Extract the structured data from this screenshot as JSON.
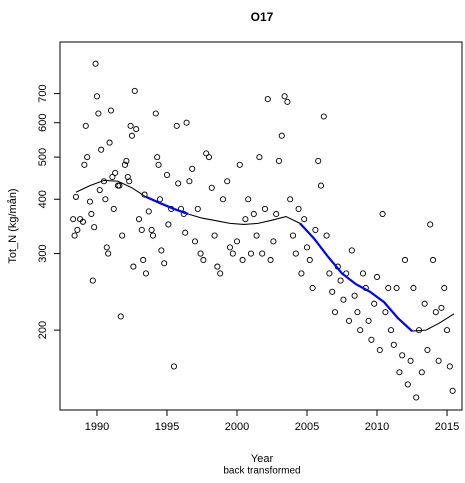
{
  "chart_data": {
    "type": "scatter",
    "title": "O17",
    "x_label": "Year",
    "x_sublabel": "back transformed",
    "y_label": "Tot_N (kg/mån)",
    "log_y": true,
    "color": "#000000",
    "xlim": [
      1987.36,
      2016.07
    ],
    "ylim": [
      131,
      920
    ],
    "xticks": [
      1990,
      1995,
      2000,
      2005,
      2010,
      2015
    ],
    "yticks": [
      200,
      300,
      400,
      500,
      600,
      700
    ],
    "x": [
      1988.3,
      1988.4,
      1988.5,
      1988.6,
      1988.8,
      1989.0,
      1989.1,
      1989.2,
      1989.3,
      1989.5,
      1989.6,
      1989.7,
      1989.8,
      1989.9,
      1990.0,
      1990.1,
      1990.2,
      1990.3,
      1990.5,
      1990.6,
      1990.7,
      1990.8,
      1990.9,
      1991.0,
      1991.1,
      1991.2,
      1991.3,
      1991.5,
      1991.6,
      1991.7,
      1991.8,
      1992.0,
      1992.1,
      1992.2,
      1992.3,
      1992.4,
      1992.5,
      1992.6,
      1992.7,
      1992.8,
      1993.0,
      1993.2,
      1993.3,
      1993.4,
      1993.5,
      1993.7,
      1993.9,
      1994.0,
      1994.2,
      1994.3,
      1994.4,
      1994.5,
      1994.6,
      1994.8,
      1995.0,
      1995.1,
      1995.3,
      1995.5,
      1995.7,
      1995.8,
      1996.0,
      1996.2,
      1996.3,
      1996.4,
      1996.6,
      1996.8,
      1997.0,
      1997.2,
      1997.4,
      1997.6,
      1997.8,
      1998.0,
      1998.2,
      1998.4,
      1998.6,
      1998.8,
      1999.0,
      1999.3,
      1999.5,
      1999.7,
      2000.0,
      2000.2,
      2000.4,
      2000.6,
      2000.8,
      2001.0,
      2001.2,
      2001.4,
      2001.6,
      2001.8,
      2002.0,
      2002.2,
      2002.4,
      2002.6,
      2002.8,
      2003.0,
      2003.2,
      2003.4,
      2003.6,
      2003.8,
      2004.0,
      2004.2,
      2004.4,
      2004.6,
      2004.8,
      2005.0,
      2005.2,
      2005.4,
      2005.6,
      2005.8,
      2006.0,
      2006.2,
      2006.4,
      2006.6,
      2006.8,
      2007.0,
      2007.2,
      2007.4,
      2007.6,
      2007.8,
      2008.0,
      2008.2,
      2008.4,
      2008.6,
      2008.8,
      2009.0,
      2009.2,
      2009.4,
      2009.6,
      2009.8,
      2010.0,
      2010.2,
      2010.4,
      2010.6,
      2010.8,
      2011.0,
      2011.2,
      2011.4,
      2011.6,
      2011.8,
      2012.0,
      2012.2,
      2012.4,
      2012.6,
      2012.8,
      2013.0,
      2013.2,
      2013.4,
      2013.6,
      2013.8,
      2014.0,
      2014.2,
      2014.4,
      2014.6,
      2014.8,
      2015.0,
      2015.2,
      2015.4
    ],
    "y": [
      360,
      330,
      405,
      340,
      360,
      355,
      480,
      590,
      500,
      395,
      370,
      260,
      345,
      820,
      690,
      630,
      420,
      520,
      440,
      400,
      310,
      300,
      540,
      640,
      450,
      380,
      460,
      430,
      430,
      215,
      330,
      480,
      490,
      450,
      440,
      590,
      560,
      280,
      710,
      580,
      360,
      340,
      290,
      410,
      270,
      375,
      340,
      330,
      630,
      500,
      480,
      400,
      305,
      285,
      455,
      350,
      380,
      165,
      590,
      435,
      380,
      370,
      335,
      600,
      440,
      470,
      320,
      380,
      300,
      290,
      510,
      500,
      425,
      330,
      280,
      270,
      400,
      440,
      310,
      300,
      320,
      480,
      290,
      360,
      400,
      300,
      370,
      330,
      500,
      300,
      380,
      680,
      290,
      320,
      370,
      490,
      560,
      690,
      670,
      400,
      330,
      300,
      380,
      270,
      360,
      310,
      290,
      250,
      340,
      490,
      430,
      620,
      330,
      270,
      245,
      220,
      280,
      260,
      235,
      270,
      210,
      305,
      240,
      220,
      200,
      270,
      250,
      210,
      190,
      230,
      265,
      180,
      370,
      220,
      250,
      200,
      185,
      250,
      160,
      175,
      290,
      150,
      170,
      250,
      140,
      200,
      160,
      230,
      180,
      350,
      290,
      220,
      170,
      225,
      250,
      200,
      165,
      145
    ],
    "lines": [
      {
        "color": "#000000",
        "x": [
          1988.5,
          1989.5,
          1990.5,
          1991.5,
          1992.5,
          1993.5,
          1994.5,
          1995.5,
          1996.5,
          1997.5,
          1998.5,
          1999.5,
          2000.5,
          2001.5,
          2002.5,
          2003.5,
          2004.5,
          2005.5,
          2006.5,
          2007.5,
          2008.5,
          2009.5,
          2010.5,
          2011.5,
          2012.5,
          2013.5,
          2014.5,
          2015.5
        ],
        "y": [
          415,
          430,
          442,
          440,
          425,
          405,
          392,
          380,
          370,
          362,
          357,
          352,
          350,
          352,
          358,
          365,
          352,
          325,
          295,
          270,
          255,
          245,
          232,
          213,
          199,
          200,
          208,
          218
        ]
      },
      {
        "color": "#0000ff",
        "x": [
          1993.5,
          1994.5,
          1995.5,
          1996.5,
          1997.5,
          2004.5,
          2005.5,
          2006.5,
          2007.5,
          2008.5,
          2009.5,
          2010.5,
          2011.5,
          2012.5
        ],
        "y": [
          405,
          392,
          380,
          370,
          null,
          352,
          325,
          295,
          270,
          255,
          245,
          232,
          213,
          199
        ]
      }
    ]
  }
}
